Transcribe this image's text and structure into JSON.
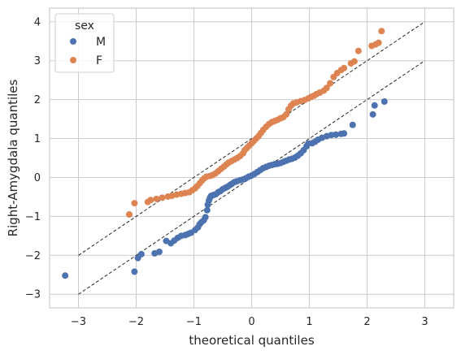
{
  "chart_data": {
    "type": "scatter",
    "title": "",
    "xlabel": "theoretical quantiles",
    "ylabel": "Right-Amygdala quantiles",
    "xlim": [
      -3.5,
      3.5
    ],
    "ylim": [
      -3.35,
      4.35
    ],
    "xticks": [
      -3,
      -2,
      -1,
      0,
      1,
      2,
      3
    ],
    "yticks": [
      -3,
      -2,
      -1,
      0,
      1,
      2,
      3,
      4
    ],
    "grid": true,
    "legend": {
      "title": "sex",
      "placement": "top-left"
    },
    "reference_lines": [
      {
        "x": [
          -3,
          3
        ],
        "y": [
          -2,
          4
        ]
      },
      {
        "x": [
          -3,
          3
        ],
        "y": [
          -3,
          3
        ]
      }
    ],
    "series": [
      {
        "name": "M",
        "color": "#4c72b0",
        "points": [
          [
            -3.23,
            -2.52
          ],
          [
            -2.03,
            -2.42
          ],
          [
            -1.97,
            -2.07
          ],
          [
            -1.91,
            -1.97
          ],
          [
            -1.68,
            -1.95
          ],
          [
            -1.6,
            -1.91
          ],
          [
            -1.48,
            -1.63
          ],
          [
            -1.4,
            -1.69
          ],
          [
            -1.34,
            -1.62
          ],
          [
            -1.28,
            -1.55
          ],
          [
            -1.22,
            -1.5
          ],
          [
            -1.15,
            -1.48
          ],
          [
            -1.1,
            -1.45
          ],
          [
            -1.05,
            -1.42
          ],
          [
            -0.98,
            -1.35
          ],
          [
            -0.93,
            -1.28
          ],
          [
            -0.9,
            -1.2
          ],
          [
            -0.87,
            -1.15
          ],
          [
            -0.83,
            -1.1
          ],
          [
            -0.8,
            -1.02
          ],
          [
            -0.77,
            -0.84
          ],
          [
            -0.76,
            -0.7
          ],
          [
            -0.74,
            -0.59
          ],
          [
            -0.72,
            -0.52
          ],
          [
            -0.7,
            -0.47
          ],
          [
            -0.66,
            -0.45
          ],
          [
            -0.62,
            -0.43
          ],
          [
            -0.58,
            -0.38
          ],
          [
            -0.54,
            -0.35
          ],
          [
            -0.5,
            -0.3
          ],
          [
            -0.46,
            -0.27
          ],
          [
            -0.42,
            -0.24
          ],
          [
            -0.38,
            -0.2
          ],
          [
            -0.34,
            -0.16
          ],
          [
            -0.3,
            -0.12
          ],
          [
            -0.26,
            -0.1
          ],
          [
            -0.2,
            -0.07
          ],
          [
            -0.15,
            -0.05
          ],
          [
            -0.1,
            -0.02
          ],
          [
            -0.05,
            0.02
          ],
          [
            0.0,
            0.05
          ],
          [
            0.05,
            0.09
          ],
          [
            0.1,
            0.14
          ],
          [
            0.15,
            0.19
          ],
          [
            0.2,
            0.24
          ],
          [
            0.25,
            0.27
          ],
          [
            0.3,
            0.3
          ],
          [
            0.35,
            0.32
          ],
          [
            0.4,
            0.34
          ],
          [
            0.45,
            0.35
          ],
          [
            0.5,
            0.37
          ],
          [
            0.55,
            0.4
          ],
          [
            0.6,
            0.43
          ],
          [
            0.65,
            0.46
          ],
          [
            0.7,
            0.48
          ],
          [
            0.75,
            0.51
          ],
          [
            0.8,
            0.56
          ],
          [
            0.85,
            0.62
          ],
          [
            0.9,
            0.7
          ],
          [
            0.95,
            0.8
          ],
          [
            0.98,
            0.87
          ],
          [
            1.05,
            0.88
          ],
          [
            1.1,
            0.92
          ],
          [
            1.15,
            0.97
          ],
          [
            1.22,
            1.02
          ],
          [
            1.3,
            1.06
          ],
          [
            1.38,
            1.09
          ],
          [
            1.46,
            1.1
          ],
          [
            1.55,
            1.12
          ],
          [
            1.6,
            1.13
          ],
          [
            1.75,
            1.35
          ],
          [
            2.1,
            1.62
          ],
          [
            2.13,
            1.85
          ],
          [
            2.3,
            1.95
          ]
        ]
      },
      {
        "name": "F",
        "color": "#dd8452",
        "points": [
          [
            -2.12,
            -0.95
          ],
          [
            -2.03,
            -0.66
          ],
          [
            -1.8,
            -0.63
          ],
          [
            -1.75,
            -0.58
          ],
          [
            -1.65,
            -0.55
          ],
          [
            -1.55,
            -0.52
          ],
          [
            -1.45,
            -0.49
          ],
          [
            -1.38,
            -0.47
          ],
          [
            -1.3,
            -0.44
          ],
          [
            -1.22,
            -0.42
          ],
          [
            -1.15,
            -0.4
          ],
          [
            -1.08,
            -0.38
          ],
          [
            -1.03,
            -0.33
          ],
          [
            -0.98,
            -0.28
          ],
          [
            -0.94,
            -0.22
          ],
          [
            -0.9,
            -0.15
          ],
          [
            -0.86,
            -0.08
          ],
          [
            -0.82,
            -0.02
          ],
          [
            -0.78,
            0.02
          ],
          [
            -0.72,
            0.04
          ],
          [
            -0.68,
            0.06
          ],
          [
            -0.63,
            0.1
          ],
          [
            -0.58,
            0.16
          ],
          [
            -0.53,
            0.22
          ],
          [
            -0.48,
            0.28
          ],
          [
            -0.44,
            0.33
          ],
          [
            -0.4,
            0.38
          ],
          [
            -0.35,
            0.42
          ],
          [
            -0.3,
            0.46
          ],
          [
            -0.25,
            0.5
          ],
          [
            -0.2,
            0.55
          ],
          [
            -0.15,
            0.62
          ],
          [
            -0.12,
            0.7
          ],
          [
            -0.08,
            0.76
          ],
          [
            -0.04,
            0.82
          ],
          [
            0.0,
            0.88
          ],
          [
            0.04,
            0.94
          ],
          [
            0.08,
            1.0
          ],
          [
            0.12,
            1.06
          ],
          [
            0.16,
            1.14
          ],
          [
            0.2,
            1.22
          ],
          [
            0.25,
            1.3
          ],
          [
            0.3,
            1.37
          ],
          [
            0.35,
            1.42
          ],
          [
            0.4,
            1.45
          ],
          [
            0.45,
            1.48
          ],
          [
            0.5,
            1.52
          ],
          [
            0.55,
            1.55
          ],
          [
            0.6,
            1.62
          ],
          [
            0.64,
            1.75
          ],
          [
            0.68,
            1.84
          ],
          [
            0.72,
            1.9
          ],
          [
            0.78,
            1.93
          ],
          [
            0.85,
            1.96
          ],
          [
            0.92,
            1.99
          ],
          [
            0.98,
            2.03
          ],
          [
            1.03,
            2.07
          ],
          [
            1.08,
            2.1
          ],
          [
            1.12,
            2.14
          ],
          [
            1.18,
            2.18
          ],
          [
            1.25,
            2.23
          ],
          [
            1.3,
            2.3
          ],
          [
            1.36,
            2.42
          ],
          [
            1.42,
            2.58
          ],
          [
            1.48,
            2.68
          ],
          [
            1.55,
            2.76
          ],
          [
            1.6,
            2.81
          ],
          [
            1.72,
            2.93
          ],
          [
            1.78,
            2.98
          ],
          [
            1.85,
            3.25
          ],
          [
            2.08,
            3.38
          ],
          [
            2.15,
            3.42
          ],
          [
            2.2,
            3.46
          ],
          [
            2.25,
            3.76
          ]
        ]
      }
    ]
  }
}
